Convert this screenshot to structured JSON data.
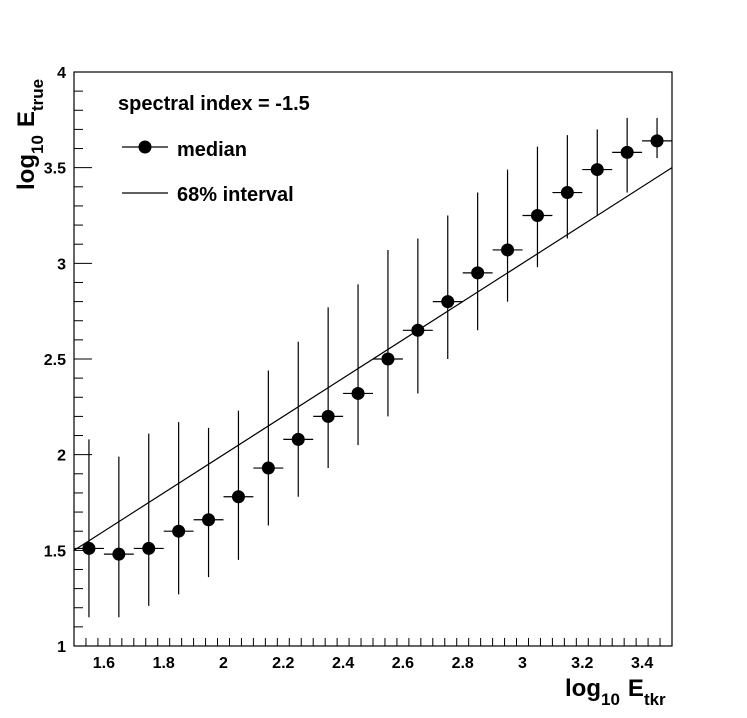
{
  "chart_data": {
    "type": "scatter",
    "title": "",
    "xlabel": {
      "main": "log",
      "sub1": "10",
      "var": "E",
      "sub2": "tkr"
    },
    "ylabel": {
      "main": "log",
      "sub1": "10",
      "var": "E",
      "sub2": "true"
    },
    "xlim": [
      1.5,
      3.5
    ],
    "ylim": [
      1,
      4
    ],
    "xticks": [
      1.6,
      1.8,
      2,
      2.2,
      2.4,
      2.6,
      2.8,
      3,
      3.2,
      3.4
    ],
    "xtick_labels": [
      "1.6",
      "1.8",
      "2",
      "2.2",
      "2.4",
      "2.6",
      "2.8",
      "3",
      "3.2",
      "3.4"
    ],
    "yticks": [
      1,
      1.5,
      2,
      2.5,
      3,
      3.5,
      4
    ],
    "ytick_labels": [
      "1",
      "1.5",
      "2",
      "2.5",
      "3",
      "3.5",
      "4"
    ],
    "grid": false,
    "legend_position": "top-left",
    "annotation": "spectral index = -1.5",
    "series": [
      {
        "name": "median",
        "marker": "filled-circle",
        "x": [
          1.55,
          1.65,
          1.75,
          1.85,
          1.95,
          2.05,
          2.15,
          2.25,
          2.35,
          2.45,
          2.55,
          2.65,
          2.75,
          2.85,
          2.95,
          3.05,
          3.15,
          3.25,
          3.35,
          3.45
        ],
        "x_halfwidth": 0.05,
        "y": [
          1.51,
          1.48,
          1.51,
          1.6,
          1.66,
          1.78,
          1.93,
          2.08,
          2.2,
          2.32,
          2.5,
          2.65,
          2.8,
          2.95,
          3.07,
          3.25,
          3.37,
          3.49,
          3.58,
          3.64
        ],
        "y_low": [
          1.15,
          1.15,
          1.21,
          1.27,
          1.36,
          1.45,
          1.63,
          1.78,
          1.93,
          2.05,
          2.2,
          2.32,
          2.5,
          2.65,
          2.8,
          2.98,
          3.13,
          3.25,
          3.37,
          3.55
        ],
        "y_high": [
          2.08,
          1.99,
          2.11,
          2.17,
          2.14,
          2.23,
          2.44,
          2.59,
          2.77,
          2.89,
          3.07,
          3.13,
          3.25,
          3.37,
          3.49,
          3.61,
          3.67,
          3.7,
          3.76,
          3.76
        ]
      },
      {
        "name": "68% interval",
        "marker": "line",
        "x": [
          1.5,
          3.5
        ],
        "y": [
          1.5,
          3.5
        ]
      }
    ]
  },
  "colors": {
    "foreground": "#000000",
    "background": "#ffffff"
  }
}
